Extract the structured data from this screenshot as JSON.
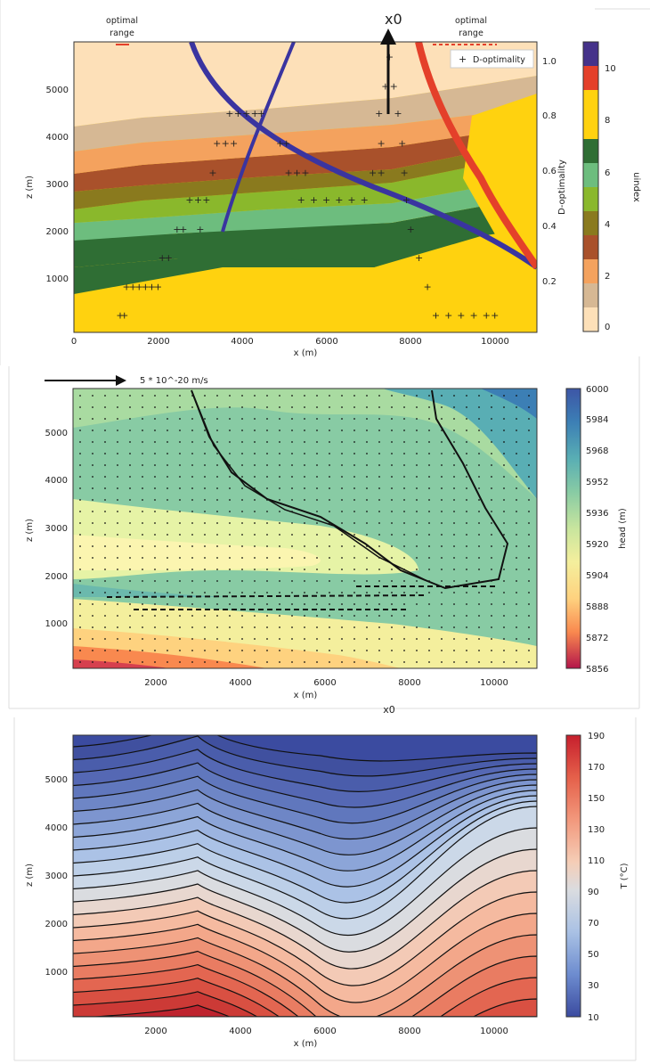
{
  "chart_data": [
    {
      "type": "contour",
      "title": "",
      "xlabel": "x (m)",
      "ylabel": "z (m)",
      "xlim": [
        0,
        11000
      ],
      "ylim": [
        0,
        5900
      ],
      "x_ticks": [
        "0",
        "2000",
        "4000",
        "6000",
        "8000",
        "10000"
      ],
      "y_ticks": [
        "1000",
        "2000",
        "3000",
        "4000",
        "5000"
      ],
      "colorbar": {
        "label": "uindex",
        "ticks": [
          "0",
          "2",
          "4",
          "6",
          "8",
          "10"
        ],
        "range": [
          0,
          11
        ],
        "colors": [
          "#fde0b8",
          "#d6b894",
          "#f4a25e",
          "#a9512b",
          "#8a7a1e",
          "#8ab82c",
          "#6dbd7e",
          "#2f6e34",
          "#ffd20f",
          "#e4402a",
          "#45328a"
        ]
      },
      "right_axis": {
        "label": "D-optimality",
        "ticks": [
          "0.2",
          "0.4",
          "0.6",
          "0.8",
          "1.0"
        ]
      },
      "legend": {
        "entries": [
          "D-optimality"
        ],
        "position": "top-right"
      },
      "annotations": [
        "x0",
        "optimal\nrange",
        "optimal\nrange"
      ],
      "series": [
        {
          "name": "D-optimality",
          "type": "scatter",
          "marker": "+",
          "points": [
            [
              1100,
              350
            ],
            [
              1200,
              350
            ],
            [
              1250,
              930
            ],
            [
              1400,
              930
            ],
            [
              1550,
              930
            ],
            [
              1700,
              930
            ],
            [
              1850,
              930
            ],
            [
              2000,
              930
            ],
            [
              2100,
              1520
            ],
            [
              2250,
              1520
            ],
            [
              2450,
              2100
            ],
            [
              2600,
              2100
            ],
            [
              3000,
              2100
            ],
            [
              2750,
              2700
            ],
            [
              2950,
              2700
            ],
            [
              3150,
              2700
            ],
            [
              3300,
              3250
            ],
            [
              3400,
              3850
            ],
            [
              3600,
              3850
            ],
            [
              3800,
              3850
            ],
            [
              3700,
              4450
            ],
            [
              3900,
              4450
            ],
            [
              4100,
              4450
            ],
            [
              4300,
              4450
            ],
            [
              4450,
              4450
            ],
            [
              4900,
              3850
            ],
            [
              5050,
              3850
            ],
            [
              5100,
              3250
            ],
            [
              5300,
              3250
            ],
            [
              5500,
              3250
            ],
            [
              5400,
              2700
            ],
            [
              5700,
              2700
            ],
            [
              6000,
              2700
            ],
            [
              6300,
              2700
            ],
            [
              6600,
              2700
            ],
            [
              6900,
              2700
            ],
            [
              7100,
              3250
            ],
            [
              7300,
              3250
            ],
            [
              7300,
              3850
            ],
            [
              7800,
              3850
            ],
            [
              7250,
              4450
            ],
            [
              7700,
              4450
            ],
            [
              7500,
              5600
            ],
            [
              7400,
              5000
            ],
            [
              7600,
              5000
            ],
            [
              7850,
              3250
            ],
            [
              7900,
              2700
            ],
            [
              8000,
              2100
            ],
            [
              8200,
              1520
            ],
            [
              8400,
              930
            ],
            [
              8600,
              350
            ],
            [
              8900,
              350
            ],
            [
              9200,
              350
            ],
            [
              9500,
              350
            ],
            [
              9800,
              350
            ],
            [
              10000,
              350
            ]
          ]
        }
      ]
    },
    {
      "type": "contour",
      "title": "",
      "xlabel": "x (m)",
      "ylabel": "z (m)",
      "xlim": [
        0,
        11000
      ],
      "ylim": [
        0,
        5900
      ],
      "x_ticks": [
        "2000",
        "4000",
        "6000",
        "8000",
        "10000"
      ],
      "y_ticks": [
        "1000",
        "2000",
        "3000",
        "4000",
        "5000"
      ],
      "colorbar": {
        "label": "head (m)",
        "ticks": [
          "6000",
          "5984",
          "5968",
          "5952",
          "5936",
          "5920",
          "5904",
          "5888",
          "5872",
          "5856"
        ],
        "range": [
          5856,
          6000
        ]
      },
      "quiver_key": "5 * 10^-20 m/s",
      "annotations": [
        "x0"
      ]
    },
    {
      "type": "contour",
      "title": "",
      "xlabel": "x (m)",
      "ylabel": "z (m)",
      "xlim": [
        0,
        11000
      ],
      "ylim": [
        0,
        5900
      ],
      "x_ticks": [
        "2000",
        "4000",
        "6000",
        "8000",
        "10000"
      ],
      "y_ticks": [
        "1000",
        "2000",
        "3000",
        "4000",
        "5000"
      ],
      "colorbar": {
        "label": "T (°C)",
        "ticks": [
          "190",
          "170",
          "150",
          "130",
          "110",
          "90",
          "70",
          "50",
          "30",
          "10"
        ],
        "range": [
          10,
          190
        ]
      }
    }
  ]
}
